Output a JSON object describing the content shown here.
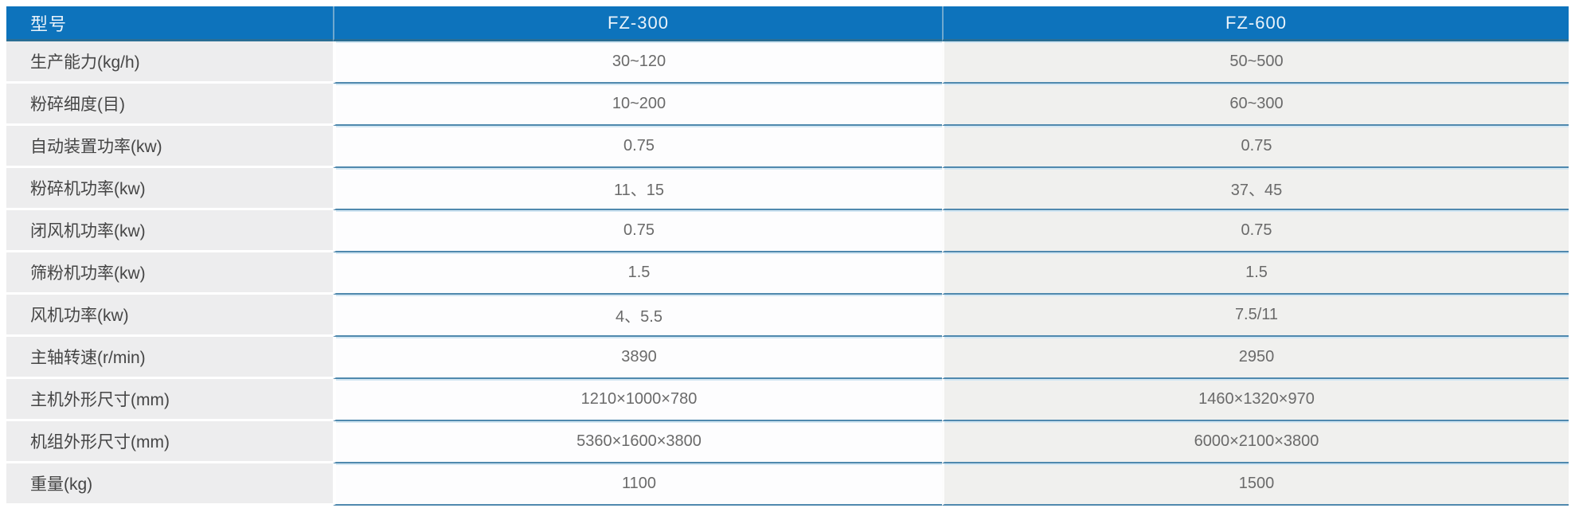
{
  "colors": {
    "page_bg": "#ffffff",
    "header_bg": "#0d73bc",
    "header_text": "#eaf3fa",
    "header_divider": "#6fa8ce",
    "header_bottom_border": "#2a6e94",
    "label_col_bg": "#ededee",
    "label_text": "#454545",
    "value_text": "#6a6a6a",
    "row_line_dark": "#5089ae",
    "row_line_light": "#d3e7f3",
    "col2_bg": "#fdfdfe",
    "col3_bg": "#f0f0ee"
  },
  "table": {
    "header": {
      "param_label": "型号",
      "model_1": "FZ-300",
      "model_2": "FZ-600"
    },
    "rows": [
      {
        "label": "生产能力(kg/h)",
        "fz300": "30~120",
        "fz600": "50~500"
      },
      {
        "label": "粉碎细度(目)",
        "fz300": "10~200",
        "fz600": "60~300"
      },
      {
        "label": "自动装置功率(kw)",
        "fz300": "0.75",
        "fz600": "0.75"
      },
      {
        "label": "粉碎机功率(kw)",
        "fz300": "11、15",
        "fz600": "37、45"
      },
      {
        "label": "闭风机功率(kw)",
        "fz300": "0.75",
        "fz600": "0.75"
      },
      {
        "label": "筛粉机功率(kw)",
        "fz300": "1.5",
        "fz600": "1.5"
      },
      {
        "label": "风机功率(kw)",
        "fz300": "4、5.5",
        "fz600": "7.5/11"
      },
      {
        "label": "主轴转速(r/min)",
        "fz300": "3890",
        "fz600": "2950"
      },
      {
        "label": "主机外形尺寸(mm)",
        "fz300": "1210×1000×780",
        "fz600": "1460×1320×970"
      },
      {
        "label": "机组外形尺寸(mm)",
        "fz300": "5360×1600×3800",
        "fz600": "6000×2100×3800"
      },
      {
        "label": "重量(kg)",
        "fz300": "1100",
        "fz600": "1500"
      }
    ]
  }
}
